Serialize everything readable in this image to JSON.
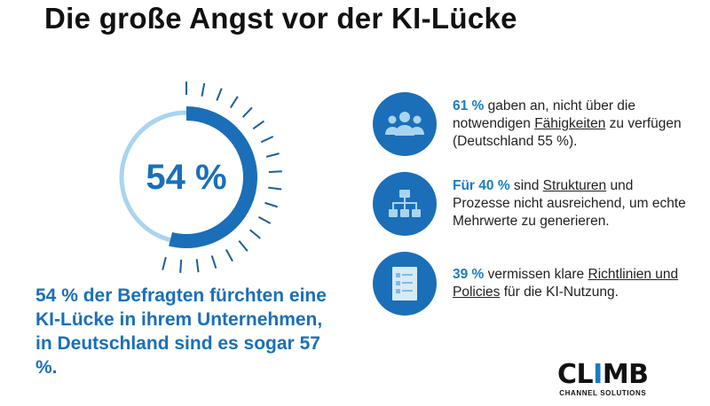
{
  "title": "Die große Angst vor der KI-Lücke",
  "gauge": {
    "value_percent": 54,
    "label": "54 %",
    "fill_color": "#1a6fb8",
    "track_color": "#a9d4f0"
  },
  "lead_text": "54 % der Befragten fürchten eine KI-Lücke in ihrem Unternehmen, in Deutschland sind es sogar 57 %.",
  "items": [
    {
      "icon": "people-group-icon",
      "highlight": "61 %",
      "pre": " gaben an, nicht über die notwendigen ",
      "underlined": "Fähigkeiten",
      "post": " zu verfügen (Deutschland 55 %)."
    },
    {
      "icon": "org-chart-icon",
      "highlight": "Für 40 %",
      "pre": " sind ",
      "underlined": "Strukturen",
      "post": " und Prozesse nicht ausreichend, um echte Mehrwerte zu generieren."
    },
    {
      "icon": "checklist-document-icon",
      "highlight": "39 %",
      "pre": " vermissen klare ",
      "underlined": "Richtlinien und Policies",
      "post": " für die KI-Nutzung."
    }
  ],
  "logo": {
    "word_a": "CL",
    "word_i": "I",
    "word_b": "MB",
    "subtitle": "CHANNEL SOLUTIONS"
  },
  "colors": {
    "accent": "#1a6fb8",
    "light_accent": "#a9d4f0",
    "text": "#222222"
  }
}
